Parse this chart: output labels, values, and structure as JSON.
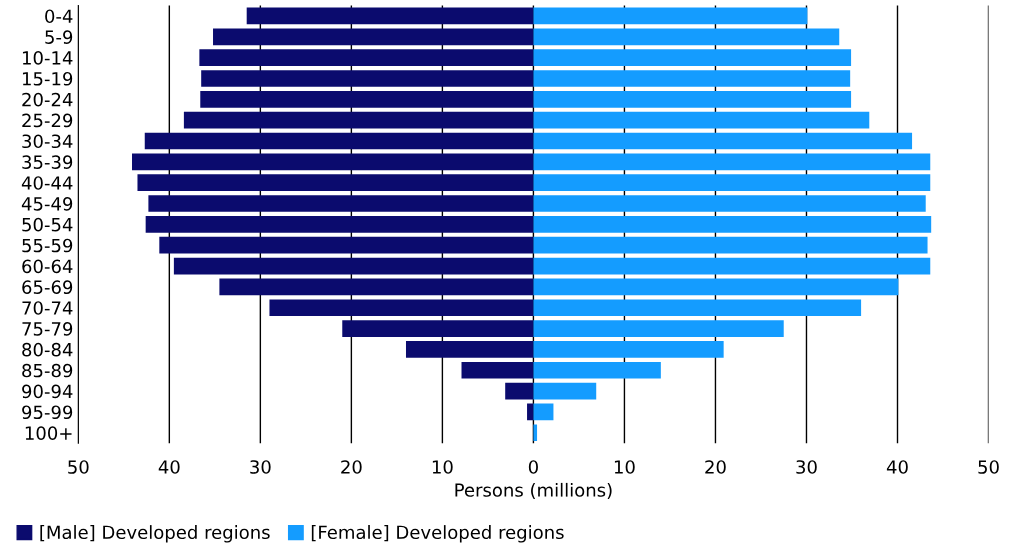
{
  "chart_data": {
    "type": "bar",
    "orientation": "horizontal",
    "stacked": true,
    "categories": [
      "0-4",
      "5-9",
      "10-14",
      "15-19",
      "20-24",
      "25-29",
      "30-34",
      "35-39",
      "40-44",
      "45-49",
      "50-54",
      "55-59",
      "60-64",
      "65-69",
      "70-74",
      "75-79",
      "80-84",
      "85-89",
      "90-94",
      "95-99",
      "100+"
    ],
    "series": [
      {
        "name": "[Male] Developed regions",
        "color": "#0b0b6e",
        "values": [
          -31.5,
          -35.2,
          -36.7,
          -36.5,
          -36.6,
          -38.4,
          -42.7,
          -44.1,
          -43.5,
          -42.3,
          -42.6,
          -41.1,
          -39.5,
          -34.5,
          -29.0,
          -21.0,
          -14.0,
          -7.9,
          -3.1,
          -0.7,
          null
        ]
      },
      {
        "name": "[Female] Developed regions",
        "color": "#149cff",
        "values": [
          30.1,
          33.6,
          34.9,
          34.8,
          34.9,
          36.9,
          41.6,
          43.6,
          43.6,
          43.1,
          43.7,
          43.3,
          43.6,
          40.1,
          36.0,
          27.5,
          20.9,
          14.0,
          6.9,
          2.2,
          0.4
        ]
      }
    ],
    "xlim": [
      -50,
      50
    ],
    "xticks": [
      {
        "value": -50,
        "label": "50"
      },
      {
        "value": -40,
        "label": "40"
      },
      {
        "value": -30,
        "label": "30"
      },
      {
        "value": -20,
        "label": "20"
      },
      {
        "value": -10,
        "label": "10"
      },
      0,
      10,
      20,
      30,
      40,
      50
    ],
    "xlabel": "Persons (millions)",
    "grid": "x",
    "legend": "bottom left"
  }
}
